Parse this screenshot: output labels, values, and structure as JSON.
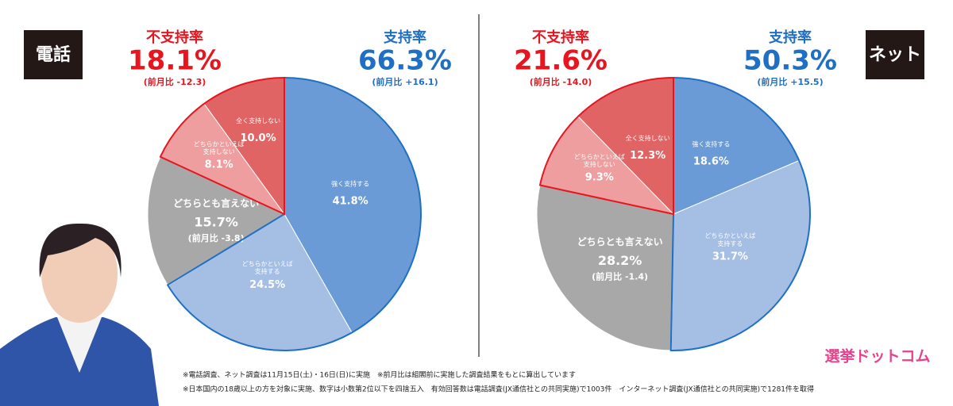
{
  "chart_data": [
    {
      "type": "pie",
      "label": "電話",
      "categories": [
        "強く支持する",
        "どちらかといえば\n支持する",
        "どちらとも言えない",
        "どちらかといえば\n支持しない",
        "全く支持しない"
      ],
      "values": [
        41.8,
        24.5,
        15.7,
        8.1,
        10.0
      ],
      "value_labels": [
        "41.8%",
        "24.5%",
        "15.7%",
        "8.1%",
        "10.0%"
      ],
      "colors": [
        "#6b9bd6",
        "#a4bee4",
        "#a8a8a8",
        "#ee9e9e",
        "#e06464"
      ],
      "neutral_change": "(前月比 -3.8)",
      "support": {
        "title": "支持率",
        "value": 66.3,
        "value_label": "66.3%",
        "change": "(前月比 +16.1)",
        "color": "#1f6fc5"
      },
      "disapproval": {
        "title": "不支持率",
        "value": 18.1,
        "value_label": "18.1%",
        "change": "(前月比 -12.3)",
        "color": "#e8141e"
      }
    },
    {
      "type": "pie",
      "label": "ネット",
      "categories": [
        "強く支持する",
        "どちらかといえば\n支持する",
        "どちらとも言えない",
        "どちらかといえば\n支持しない",
        "全く支持しない"
      ],
      "values": [
        18.6,
        31.7,
        28.2,
        9.3,
        12.3
      ],
      "value_labels": [
        "18.6%",
        "31.7%",
        "28.2%",
        "9.3%",
        "12.3%"
      ],
      "colors": [
        "#6b9bd6",
        "#a4bee4",
        "#a8a8a8",
        "#ee9e9e",
        "#e06464"
      ],
      "neutral_change": "(前月比 -1.4)",
      "support": {
        "title": "支持率",
        "value": 50.3,
        "value_label": "50.3%",
        "change": "(前月比 +15.5)",
        "color": "#1f6fc5"
      },
      "disapproval": {
        "title": "不支持率",
        "value": 21.6,
        "value_label": "21.6%",
        "change": "(前月比 -14.0)",
        "color": "#e8141e"
      }
    }
  ],
  "footnotes": [
    "※電話調査、ネット調査は11月15日(土)・16日(日)に実施　※前月比は組閣前に実施した調査結果をもとに算出しています",
    "※日本国内の18歳以上の方を対象に実施、数字は小数第2位以下を四捨五入　有効回答数は電話調査(JX通信社との共同実施)で1003件　インターネット調査(JX通信社との共同実施)で1281件を取得"
  ],
  "logo": "選挙ドットコム"
}
